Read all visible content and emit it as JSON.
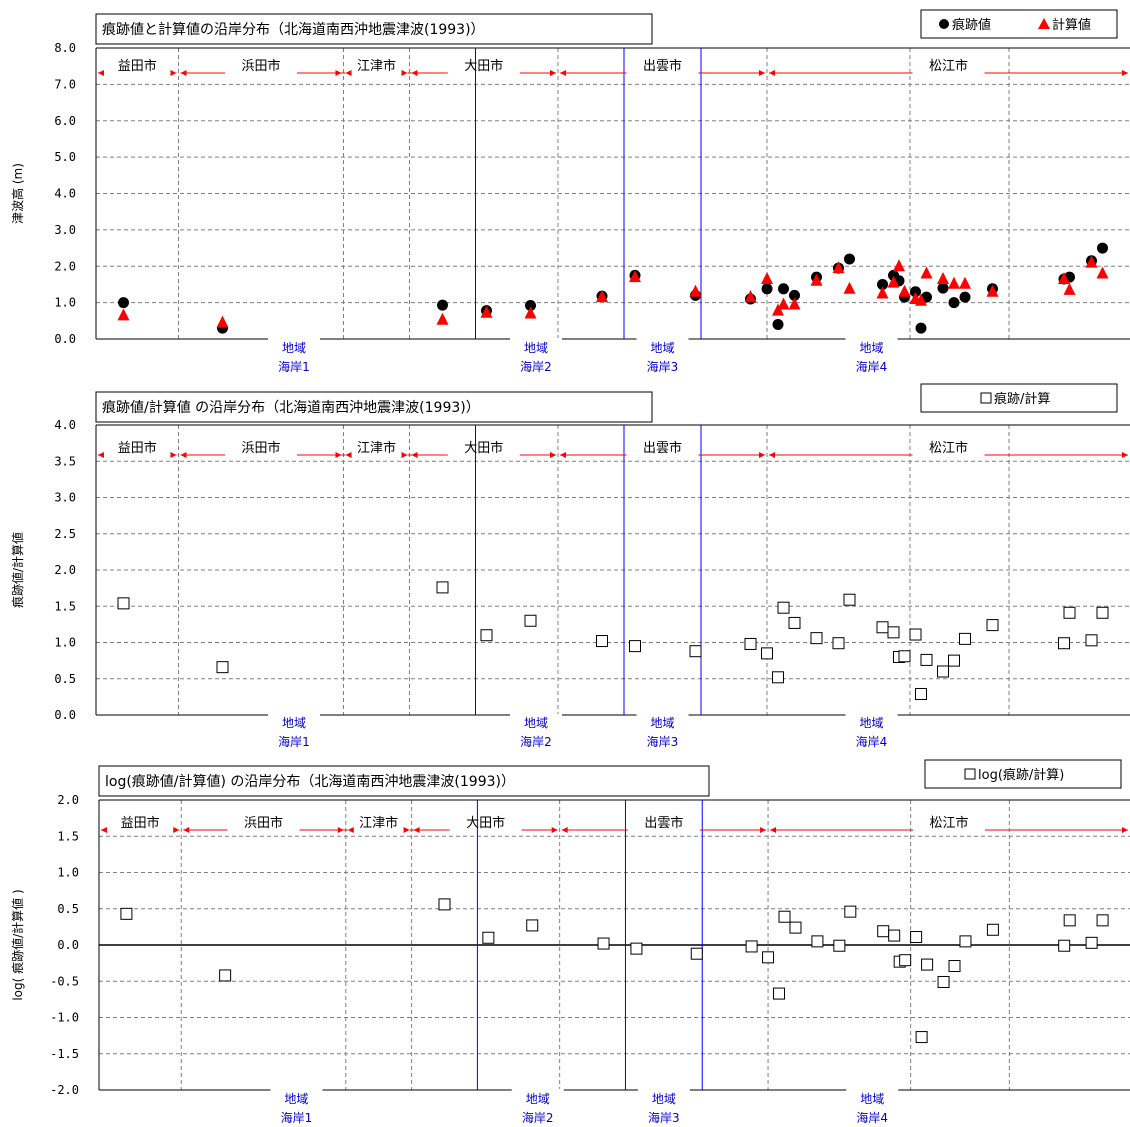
{
  "chart_data": [
    {
      "type": "scatter",
      "title": "痕跡値と計算値の沿岸分布（北海道南西沖地震津波(1993)）",
      "xlabel": "",
      "ylabel": "津波高 (m)",
      "ylim": [
        0,
        8
      ],
      "yticks": [
        "0.0",
        "1.0",
        "2.0",
        "3.0",
        "4.0",
        "5.0",
        "6.0",
        "7.0",
        "8.0"
      ],
      "grid": true,
      "legend_position": "top-right",
      "series": [
        {
          "name": "痕跡値",
          "marker": "circle",
          "color": "#000000",
          "x": [
            5,
            23,
            63,
            71,
            79,
            92,
            98,
            109,
            119,
            122,
            124,
            125,
            127,
            131,
            135,
            137,
            143,
            145,
            146,
            147,
            149,
            150,
            151,
            154,
            156,
            158,
            163,
            176,
            177,
            181,
            183
          ],
          "y": [
            1.0,
            0.3,
            0.93,
            0.78,
            0.92,
            1.18,
            1.75,
            1.2,
            1.1,
            1.38,
            0.4,
            1.38,
            1.2,
            1.7,
            1.95,
            2.2,
            1.5,
            1.75,
            1.6,
            1.15,
            1.3,
            0.3,
            1.15,
            1.4,
            1.0,
            1.15,
            1.38,
            1.65,
            1.7,
            2.15,
            2.5
          ]
        },
        {
          "name": "計算値",
          "marker": "triangle",
          "color": "#ff0000",
          "x": [
            5,
            23,
            63,
            71,
            79,
            92,
            98,
            109,
            119,
            122,
            124,
            125,
            127,
            131,
            135,
            137,
            143,
            145,
            146,
            147,
            149,
            150,
            151,
            154,
            156,
            158,
            163,
            176,
            177,
            181,
            183
          ],
          "y": [
            0.65,
            0.45,
            0.53,
            0.72,
            0.7,
            1.15,
            1.7,
            1.3,
            1.15,
            1.65,
            0.78,
            0.95,
            0.95,
            1.6,
            1.95,
            1.38,
            1.25,
            1.55,
            2.0,
            1.3,
            1.1,
            1.05,
            1.8,
            1.65,
            1.52,
            1.52,
            1.3,
            1.65,
            1.35,
            2.1,
            1.8
          ]
        }
      ]
    },
    {
      "type": "scatter",
      "title": "痕跡値/計算値 の沿岸分布（北海道南西沖地震津波(1993)）",
      "xlabel": "",
      "ylabel": "痕跡値/計算値",
      "ylim": [
        0,
        4
      ],
      "yticks": [
        "0.0",
        "0.5",
        "1.0",
        "1.5",
        "2.0",
        "2.5",
        "3.0",
        "3.5",
        "4.0"
      ],
      "grid": true,
      "legend_position": "top-right",
      "series": [
        {
          "name": "痕跡/計算",
          "marker": "square",
          "color": "#000000",
          "x": [
            5,
            23,
            63,
            71,
            79,
            92,
            98,
            109,
            119,
            122,
            124,
            125,
            127,
            131,
            135,
            137,
            143,
            145,
            146,
            147,
            149,
            150,
            151,
            154,
            156,
            158,
            163,
            176,
            177,
            181,
            183
          ],
          "y": [
            1.54,
            0.66,
            1.76,
            1.1,
            1.3,
            1.02,
            0.95,
            0.88,
            0.98,
            0.85,
            0.52,
            1.48,
            1.27,
            1.06,
            0.99,
            1.59,
            1.21,
            1.14,
            0.8,
            0.81,
            1.11,
            0.29,
            0.76,
            0.6,
            0.75,
            1.05,
            1.24,
            0.99,
            1.41,
            1.03,
            1.41
          ]
        }
      ]
    },
    {
      "type": "scatter",
      "title": "log(痕跡値/計算値) の沿岸分布（北海道南西沖地震津波(1993)）",
      "xlabel": "",
      "ylabel": "log( 痕跡値/計算値 )",
      "ylim": [
        -2,
        2
      ],
      "yticks": [
        "-2.0",
        "-1.5",
        "-1.0",
        "-0.5",
        "0.0",
        "0.5",
        "1.0",
        "1.5",
        "2.0"
      ],
      "grid": true,
      "legend_position": "top-right",
      "series": [
        {
          "name": "log(痕跡/計算)",
          "marker": "square",
          "color": "#000000",
          "x": [
            5,
            23,
            63,
            71,
            79,
            92,
            98,
            109,
            119,
            122,
            124,
            125,
            127,
            131,
            135,
            137,
            143,
            145,
            146,
            147,
            149,
            150,
            151,
            154,
            156,
            158,
            163,
            176,
            177,
            181,
            183
          ],
          "y": [
            0.43,
            -0.42,
            0.56,
            0.1,
            0.27,
            0.02,
            -0.05,
            -0.12,
            -0.02,
            -0.17,
            -0.67,
            0.39,
            0.24,
            0.05,
            -0.01,
            0.46,
            0.19,
            0.13,
            -0.23,
            -0.21,
            0.11,
            -1.27,
            -0.27,
            -0.51,
            -0.29,
            0.05,
            0.21,
            -0.01,
            0.34,
            0.03,
            0.34
          ]
        }
      ]
    }
  ],
  "cities": [
    {
      "name": "益田市",
      "from": 0,
      "to": 15
    },
    {
      "name": "浜田市",
      "from": 15,
      "to": 45
    },
    {
      "name": "江津市",
      "from": 45,
      "to": 57
    },
    {
      "name": "大田市",
      "from": 57,
      "to": 84
    },
    {
      "name": "出雲市",
      "from": 84,
      "to": 122
    },
    {
      "name": "松江市",
      "from": 122,
      "to": 188
    }
  ],
  "regions": [
    {
      "lines": [
        "地域",
        "海岸1"
      ],
      "at": 36
    },
    {
      "lines": [
        "地域",
        "海岸2"
      ],
      "at": 80
    },
    {
      "lines": [
        "地域",
        "海岸3"
      ],
      "at": 103
    },
    {
      "lines": [
        "地域",
        "海岸4"
      ],
      "at": 141
    }
  ],
  "region_boundaries": [
    69,
    96,
    110
  ],
  "colors": {
    "grid": "#808080",
    "boundary": "#0000ff",
    "city_arrow": "#ff0000",
    "region_text": "#0000cc",
    "mark_triangle": "#ff0000"
  }
}
